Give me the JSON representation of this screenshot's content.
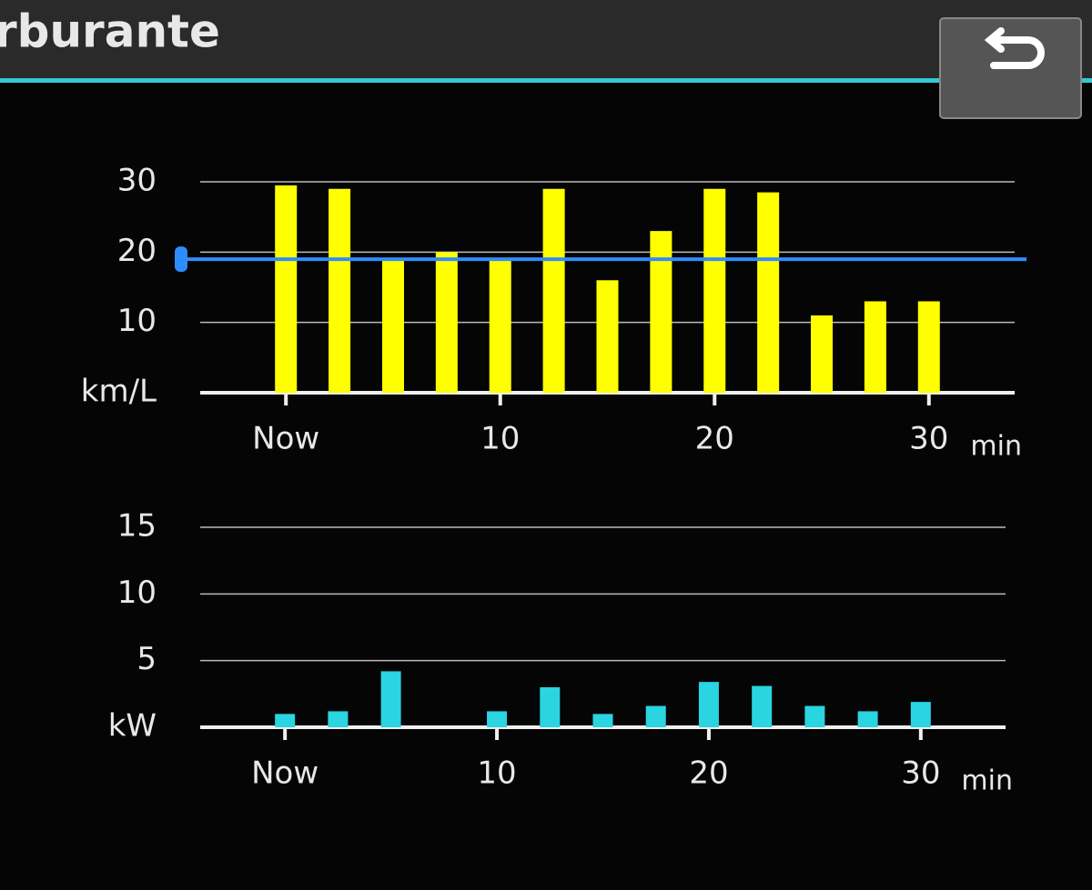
{
  "header": {
    "title": "rburante"
  },
  "chart_data": [
    {
      "type": "bar",
      "x": [
        0,
        2.5,
        5,
        7.5,
        10,
        12.5,
        15,
        17.5,
        20,
        22.5,
        25,
        27.5,
        30
      ],
      "values": [
        29.5,
        29,
        19,
        20,
        19,
        29,
        16,
        23,
        29,
        28.5,
        11,
        13,
        13
      ],
      "color": "#ffff00",
      "average": 19,
      "average_color": "#2f8cff",
      "xlim": [
        -4,
        34
      ],
      "xticks": [
        {
          "value": 0,
          "label": "Now"
        },
        10,
        20,
        30
      ],
      "x_unit": "min",
      "ylim": [
        0,
        30
      ],
      "yticks": [
        {
          "value": 0,
          "label": "km/L"
        },
        10,
        20,
        30
      ],
      "grid": true
    },
    {
      "type": "bar",
      "x": [
        0,
        2.5,
        5,
        7.5,
        10,
        12.5,
        15,
        17.5,
        20,
        22.5,
        25,
        27.5,
        30
      ],
      "values": [
        1,
        1.2,
        4.2,
        0,
        1.2,
        3,
        1,
        1.6,
        3.4,
        3.1,
        1.6,
        1.2,
        1.9
      ],
      "color": "#2ad4e0",
      "xlim": [
        -4,
        34
      ],
      "xticks": [
        {
          "value": 0,
          "label": "Now"
        },
        10,
        20,
        30
      ],
      "x_unit": "min",
      "ylim": [
        0,
        15
      ],
      "yticks": [
        {
          "value": 0,
          "label": "kW"
        },
        5,
        10,
        15
      ],
      "grid": true
    }
  ]
}
